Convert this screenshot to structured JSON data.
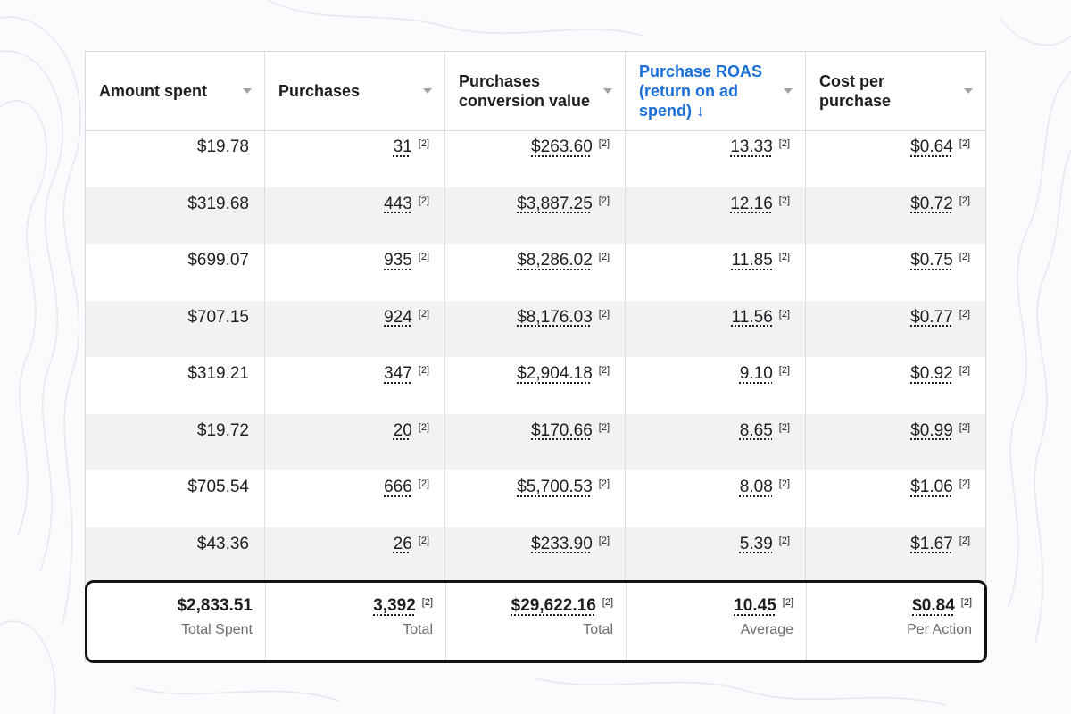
{
  "columns": [
    {
      "label": "Amount spent",
      "active": false
    },
    {
      "label": "Purchases",
      "active": false
    },
    {
      "label": "Purchases conversion value",
      "active": false
    },
    {
      "label": "Purchase ROAS (return on ad spend) ↓",
      "active": true
    },
    {
      "label": "Cost per purchase",
      "active": false
    }
  ],
  "rows": [
    {
      "amount": "$19.78",
      "purchases": "31",
      "value": "$263.60",
      "roas": "13.33",
      "cpp": "$0.64"
    },
    {
      "amount": "$319.68",
      "purchases": "443",
      "value": "$3,887.25",
      "roas": "12.16",
      "cpp": "$0.72"
    },
    {
      "amount": "$699.07",
      "purchases": "935",
      "value": "$8,286.02",
      "roas": "11.85",
      "cpp": "$0.75"
    },
    {
      "amount": "$707.15",
      "purchases": "924",
      "value": "$8,176.03",
      "roas": "11.56",
      "cpp": "$0.77"
    },
    {
      "amount": "$319.21",
      "purchases": "347",
      "value": "$2,904.18",
      "roas": "9.10",
      "cpp": "$0.92"
    },
    {
      "amount": "$19.72",
      "purchases": "20",
      "value": "$170.66",
      "roas": "8.65",
      "cpp": "$0.99"
    },
    {
      "amount": "$705.54",
      "purchases": "666",
      "value": "$5,700.53",
      "roas": "8.08",
      "cpp": "$1.06"
    },
    {
      "amount": "$43.36",
      "purchases": "26",
      "value": "$233.90",
      "roas": "5.39",
      "cpp": "$1.67"
    }
  ],
  "attribution_note": "[2]",
  "totals": {
    "amount": "$2,833.51",
    "amount_label": "Total Spent",
    "purchases": "3,392",
    "purchases_label": "Total",
    "value": "$29,622.16",
    "value_label": "Total",
    "roas": "10.45",
    "roas_label": "Average",
    "cpp": "$0.84",
    "cpp_label": "Per Action"
  },
  "colors": {
    "active_header": "#1a6ed8",
    "alt_row": "#f1f2f4",
    "highlight_border": "#111214"
  }
}
